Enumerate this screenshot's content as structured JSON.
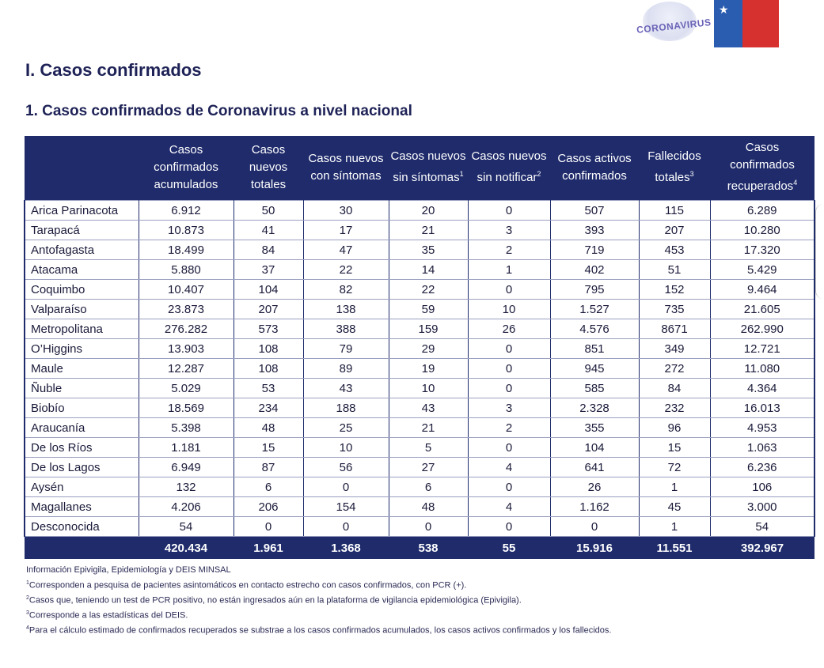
{
  "logos": {
    "corona_text": "CORONAVIRUS"
  },
  "section_title": "I. Casos confirmados",
  "subtitle": "1. Casos confirmados de Coronavirus a nivel nacional",
  "table": {
    "headers": [
      {
        "text": "",
        "sup": ""
      },
      {
        "text": "Casos confirmados acumulados",
        "sup": ""
      },
      {
        "text": "Casos nuevos totales",
        "sup": ""
      },
      {
        "text": "Casos nuevos con síntomas",
        "sup": ""
      },
      {
        "text": "Casos nuevos sin síntomas",
        "sup": "1"
      },
      {
        "text": "Casos nuevos sin notificar",
        "sup": "2"
      },
      {
        "text": "Casos activos confirmados",
        "sup": ""
      },
      {
        "text": "Fallecidos totales",
        "sup": "3"
      },
      {
        "text": "Casos confirmados recuperados",
        "sup": "4"
      }
    ],
    "rows": [
      [
        "Arica Parinacota",
        "6.912",
        "50",
        "30",
        "20",
        "0",
        "507",
        "115",
        "6.289"
      ],
      [
        "Tarapacá",
        "10.873",
        "41",
        "17",
        "21",
        "3",
        "393",
        "207",
        "10.280"
      ],
      [
        "Antofagasta",
        "18.499",
        "84",
        "47",
        "35",
        "2",
        "719",
        "453",
        "17.320"
      ],
      [
        "Atacama",
        "5.880",
        "37",
        "22",
        "14",
        "1",
        "402",
        "51",
        "5.429"
      ],
      [
        "Coquimbo",
        "10.407",
        "104",
        "82",
        "22",
        "0",
        "795",
        "152",
        "9.464"
      ],
      [
        "Valparaíso",
        "23.873",
        "207",
        "138",
        "59",
        "10",
        "1.527",
        "735",
        "21.605"
      ],
      [
        "Metropolitana",
        "276.282",
        "573",
        "388",
        "159",
        "26",
        "4.576",
        "8671",
        "262.990"
      ],
      [
        "O’Higgins",
        "13.903",
        "108",
        "79",
        "29",
        "0",
        "851",
        "349",
        "12.721"
      ],
      [
        "Maule",
        "12.287",
        "108",
        "89",
        "19",
        "0",
        "945",
        "272",
        "11.080"
      ],
      [
        "Ñuble",
        "5.029",
        "53",
        "43",
        "10",
        "0",
        "585",
        "84",
        "4.364"
      ],
      [
        "Biobío",
        "18.569",
        "234",
        "188",
        "43",
        "3",
        "2.328",
        "232",
        "16.013"
      ],
      [
        "Araucanía",
        "5.398",
        "48",
        "25",
        "21",
        "2",
        "355",
        "96",
        "4.953"
      ],
      [
        "De los Ríos",
        "1.181",
        "15",
        "10",
        "5",
        "0",
        "104",
        "15",
        "1.063"
      ],
      [
        "De los Lagos",
        "6.949",
        "87",
        "56",
        "27",
        "4",
        "641",
        "72",
        "6.236"
      ],
      [
        "Aysén",
        "132",
        "6",
        "0",
        "6",
        "0",
        "26",
        "1",
        "106"
      ],
      [
        "Magallanes",
        "4.206",
        "206",
        "154",
        "48",
        "4",
        "1.162",
        "45",
        "3.000"
      ],
      [
        "Desconocida",
        "54",
        "0",
        "0",
        "0",
        "0",
        "0",
        "1",
        "54"
      ]
    ],
    "totals": [
      "",
      "420.434",
      "1.961",
      "1.368",
      "538",
      "55",
      "15.916",
      "11.551",
      "392.967"
    ]
  },
  "notes": [
    {
      "sup": "",
      "text": "Información Epivigila, Epidemiología y DEIS MINSAL"
    },
    {
      "sup": "1",
      "text": "Corresponden a pesquisa de pacientes asintomáticos en contacto estrecho con casos confirmados, con PCR (+)."
    },
    {
      "sup": "2",
      "text": "Casos que, teniendo un test de PCR positivo, no están ingresados aún en la plataforma de vigilancia epidemiológica (Epivigila)."
    },
    {
      "sup": "3",
      "text": "Corresponde a las estadísticas del DEIS."
    },
    {
      "sup": "4",
      "text": "Para el cálculo estimado de confirmados recuperados se substrae a los casos confirmados acumulados, los casos activos confirmados y los fallecidos."
    }
  ]
}
